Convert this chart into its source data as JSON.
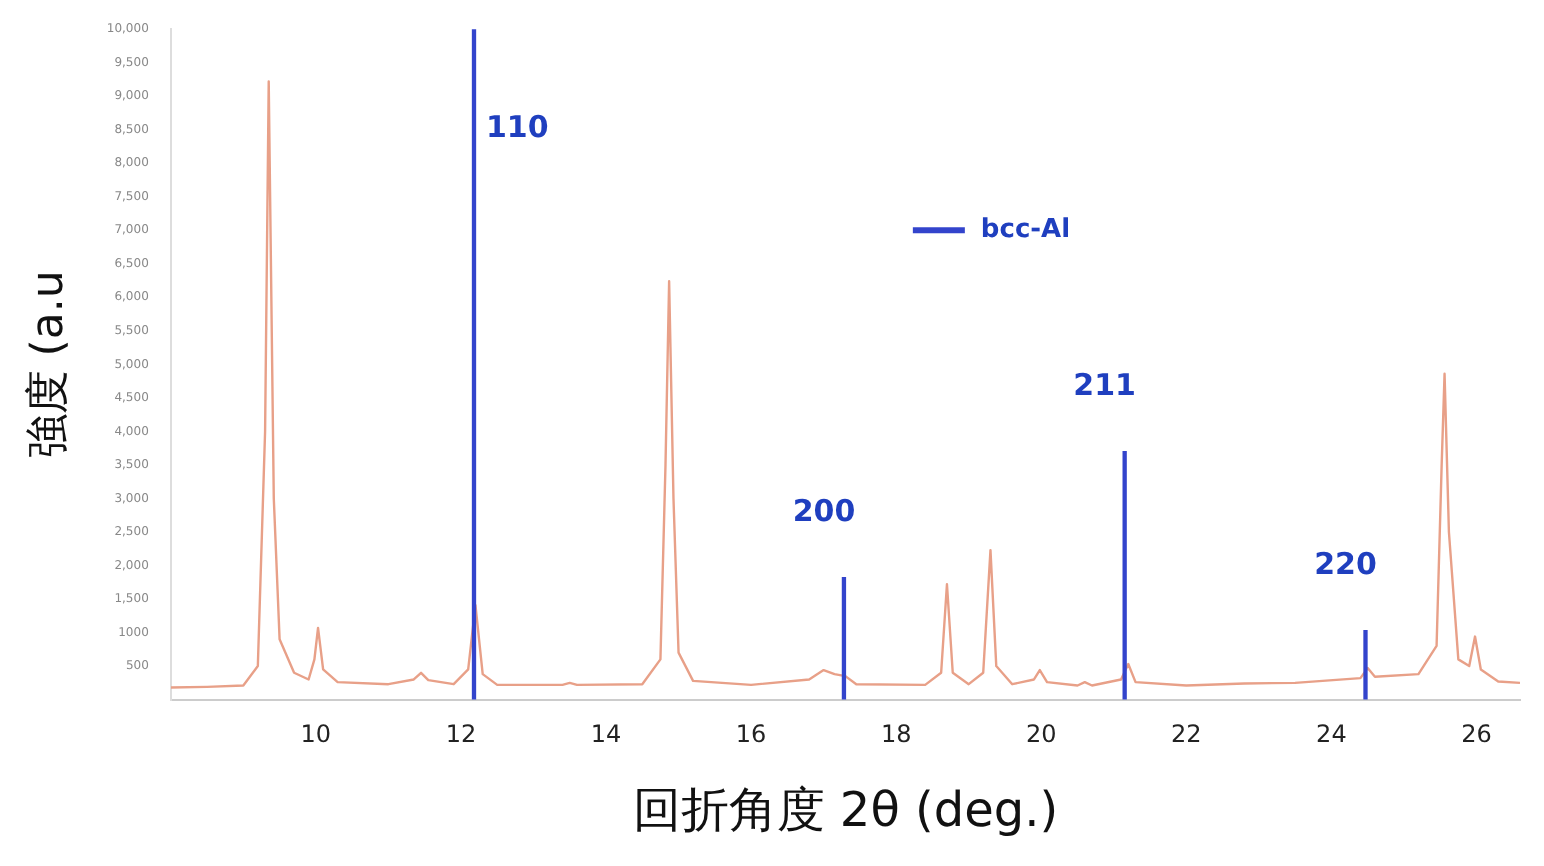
{
  "chart_data": {
    "type": "line",
    "xlabel": "回折角度 2θ (deg.)",
    "ylabel": "強度 (a.u",
    "xlim": [
      8.0,
      26.6
    ],
    "xticks": [
      10,
      12,
      14,
      16,
      18,
      20,
      22,
      24,
      26
    ],
    "ylim": [
      0,
      10000
    ],
    "yticks": [
      {
        "value": 500,
        "label": "500"
      },
      {
        "value": 1000,
        "label": "1000"
      },
      {
        "value": 1500,
        "label": "1,500"
      },
      {
        "value": 2000,
        "label": "2,000"
      },
      {
        "value": 2500,
        "label": "2,500"
      },
      {
        "value": 3000,
        "label": "3,000"
      },
      {
        "value": 3500,
        "label": "3,500"
      },
      {
        "value": 4000,
        "label": "4,000"
      },
      {
        "value": 4500,
        "label": "4,500"
      },
      {
        "value": 5000,
        "label": "5,000"
      },
      {
        "value": 5500,
        "label": "5,500"
      },
      {
        "value": 6000,
        "label": "6,000"
      },
      {
        "value": 6500,
        "label": "6,500"
      },
      {
        "value": 7000,
        "label": "7,000"
      },
      {
        "value": 7500,
        "label": "7,500"
      },
      {
        "value": 8000,
        "label": "8,000"
      },
      {
        "value": 8500,
        "label": "8,500"
      },
      {
        "value": 9000,
        "label": "9,000"
      },
      {
        "value": 9500,
        "label": "9,500"
      },
      {
        "value": 10000,
        "label": "10,000"
      }
    ],
    "grid": false,
    "legend": "top",
    "marker": "none",
    "series": [
      {
        "color": "#e8a088",
        "x": [
          8.0,
          8.5,
          9.0,
          9.2,
          9.3,
          9.35,
          9.42,
          9.5,
          9.7,
          9.9,
          9.98,
          10.03,
          10.1,
          10.3,
          11.0,
          11.35,
          11.45,
          11.55,
          11.9,
          12.1,
          12.2,
          12.3,
          12.5,
          13.4,
          13.5,
          13.6,
          14.5,
          14.75,
          14.82,
          14.87,
          14.93,
          15.0,
          15.2,
          16.0,
          16.8,
          17.0,
          17.15,
          17.3,
          17.45,
          18.4,
          18.62,
          18.7,
          18.78,
          19.0,
          19.2,
          19.3,
          19.38,
          19.6,
          19.9,
          19.98,
          20.08,
          20.5,
          20.6,
          20.7,
          21.1,
          21.2,
          21.3,
          22.0,
          22.8,
          23.5,
          24.4,
          24.5,
          24.6,
          25.2,
          25.45,
          25.52,
          25.56,
          25.62,
          25.75,
          25.9,
          25.98,
          26.06,
          26.3,
          26.6
        ],
        "values": [
          180,
          190,
          210,
          500,
          4000,
          9220,
          3000,
          900,
          400,
          300,
          600,
          1070,
          450,
          260,
          230,
          300,
          400,
          290,
          230,
          450,
          1410,
          380,
          220,
          220,
          250,
          220,
          230,
          600,
          3500,
          6240,
          3000,
          700,
          280,
          220,
          300,
          440,
          380,
          350,
          230,
          220,
          400,
          1720,
          400,
          230,
          400,
          2230,
          500,
          230,
          300,
          440,
          260,
          210,
          260,
          210,
          300,
          530,
          260,
          210,
          240,
          250,
          320,
          470,
          340,
          380,
          800,
          3500,
          4860,
          2500,
          600,
          500,
          940,
          450,
          270,
          250
        ]
      },
      {
        "type": "bar",
        "name": "bcc-Al",
        "color": "#3344cc",
        "x": [
          12.18,
          17.28,
          21.15,
          24.47
        ],
        "values": [
          10000,
          1820,
          3700,
          1030
        ]
      }
    ],
    "annotations": [
      {
        "text": "110",
        "x": 12.18,
        "y": 10000
      },
      {
        "text": "200",
        "x": 17.28,
        "y": 1820
      },
      {
        "text": "211",
        "x": 21.15,
        "y": 3700
      },
      {
        "text": "220",
        "x": 24.47,
        "y": 1030
      }
    ]
  }
}
